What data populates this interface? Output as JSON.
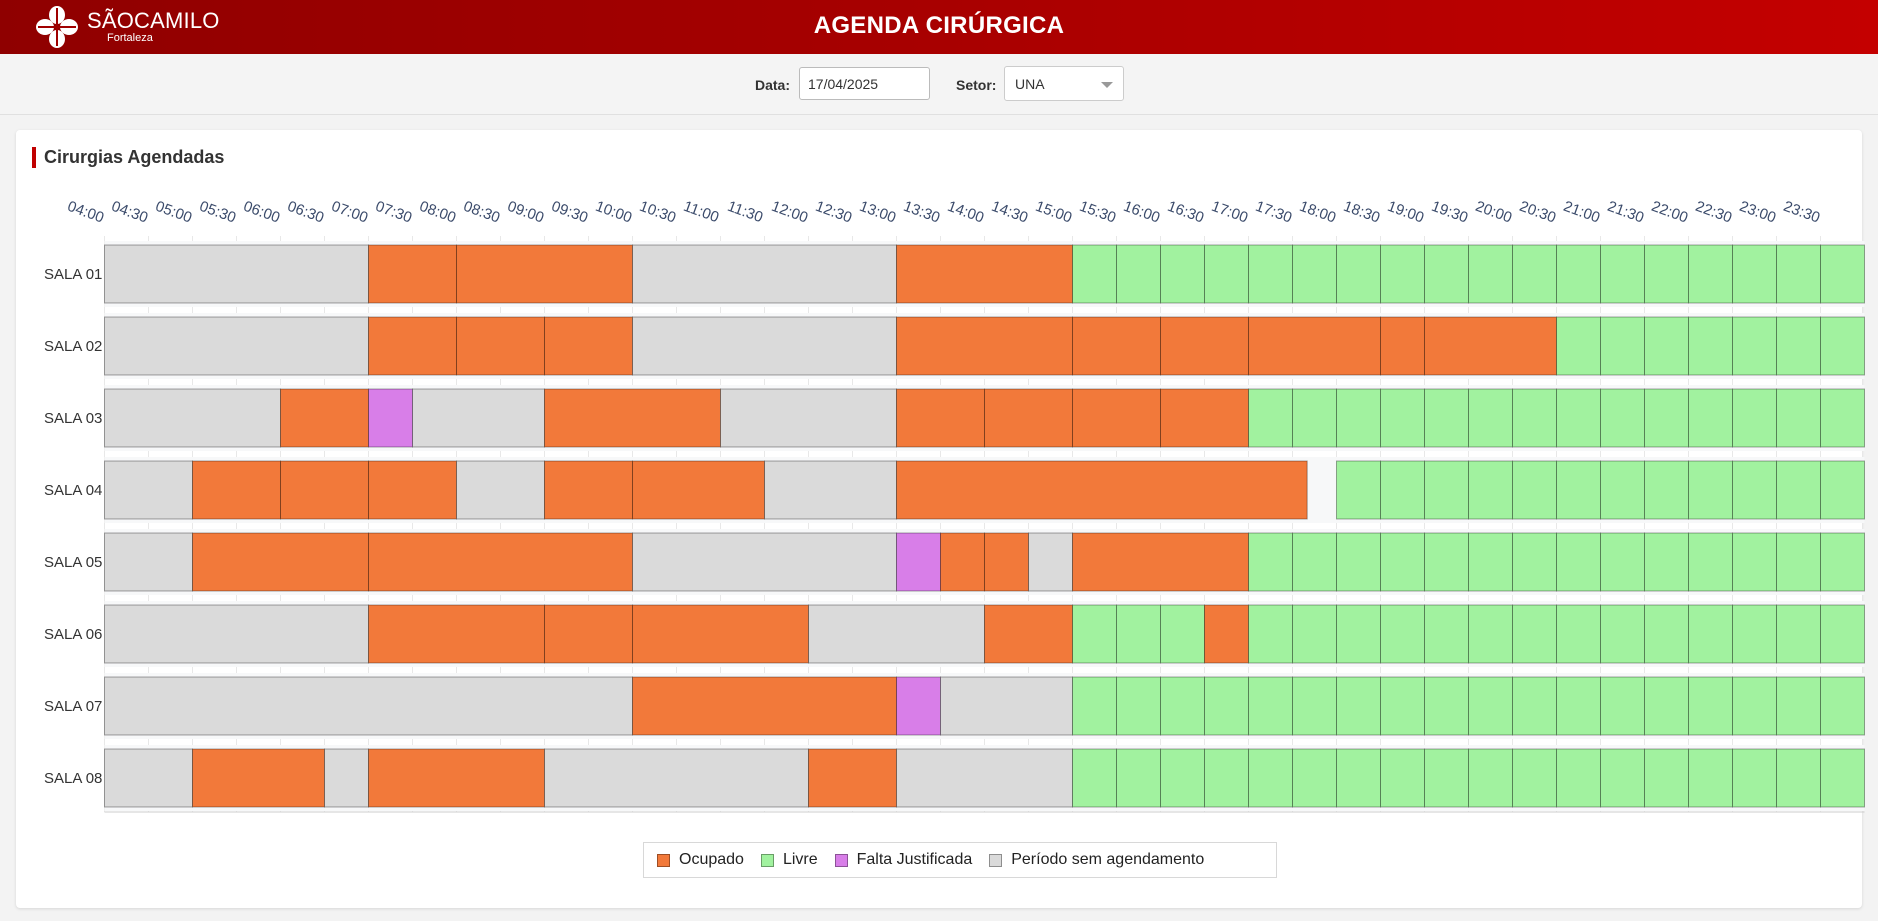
{
  "header": {
    "logo_brand": "SÃOCAMILO",
    "logo_sub": "Fortaleza",
    "title": "AGENDA CIRÚRGICA"
  },
  "filters": {
    "date_label": "Data:",
    "date_value": "17/04/2025",
    "sector_label": "Setor:",
    "sector_value": "UNA"
  },
  "card": {
    "title": "Cirurgias Agendadas"
  },
  "colors": {
    "ocupado": "#f2793a",
    "livre": "#a1f29f",
    "falta": "#d87ee8",
    "sem": "#dadada",
    "accent": "#c00000"
  },
  "legend": [
    {
      "key": "ocupado",
      "label": "Ocupado"
    },
    {
      "key": "livre",
      "label": "Livre"
    },
    {
      "key": "falta",
      "label": "Falta Justificada"
    },
    {
      "key": "sem",
      "label": "Período sem agendamento"
    }
  ],
  "chart_data": {
    "type": "gantt",
    "x_ticks": [
      "04:00",
      "04:30",
      "05:00",
      "05:30",
      "06:00",
      "06:30",
      "07:00",
      "07:30",
      "08:00",
      "08:30",
      "09:00",
      "09:30",
      "10:00",
      "10:30",
      "11:00",
      "11:30",
      "12:00",
      "12:30",
      "13:00",
      "13:30",
      "14:00",
      "14:30",
      "15:00",
      "15:30",
      "16:00",
      "16:30",
      "17:00",
      "17:30",
      "18:00",
      "18:30",
      "19:00",
      "19:30",
      "20:00",
      "20:30",
      "21:00",
      "21:30",
      "22:00",
      "22:30",
      "23:00",
      "23:30"
    ],
    "x_range": [
      "04:00",
      "23:30"
    ],
    "rooms": [
      {
        "name": "SALA 01",
        "blocks": [
          [
            "04:00",
            "07:00",
            "sem"
          ],
          [
            "07:00",
            "08:00",
            "ocupado"
          ],
          [
            "08:00",
            "10:00",
            "ocupado"
          ],
          [
            "10:00",
            "13:00",
            "sem"
          ],
          [
            "13:00",
            "15:00",
            "ocupado"
          ],
          [
            "15:00",
            "15:30",
            "livre"
          ],
          [
            "15:30",
            "16:00",
            "livre"
          ],
          [
            "16:00",
            "16:30",
            "livre"
          ],
          [
            "16:30",
            "17:00",
            "livre"
          ],
          [
            "17:00",
            "17:30",
            "livre"
          ],
          [
            "17:30",
            "18:00",
            "livre"
          ],
          [
            "18:00",
            "18:30",
            "livre"
          ],
          [
            "18:30",
            "19:00",
            "livre"
          ],
          [
            "19:00",
            "19:30",
            "livre"
          ],
          [
            "19:30",
            "20:00",
            "livre"
          ],
          [
            "20:00",
            "20:30",
            "livre"
          ],
          [
            "20:30",
            "21:00",
            "livre"
          ],
          [
            "21:00",
            "21:30",
            "livre"
          ],
          [
            "21:30",
            "22:00",
            "livre"
          ],
          [
            "22:00",
            "22:30",
            "livre"
          ],
          [
            "22:30",
            "23:00",
            "livre"
          ],
          [
            "23:00",
            "23:30",
            "livre"
          ],
          [
            "23:30",
            "24:00",
            "livre"
          ]
        ]
      },
      {
        "name": "SALA 02",
        "blocks": [
          [
            "04:00",
            "07:00",
            "sem"
          ],
          [
            "07:00",
            "08:00",
            "ocupado"
          ],
          [
            "08:00",
            "09:00",
            "ocupado"
          ],
          [
            "09:00",
            "10:00",
            "ocupado"
          ],
          [
            "10:00",
            "13:00",
            "sem"
          ],
          [
            "13:00",
            "15:00",
            "ocupado"
          ],
          [
            "15:00",
            "16:00",
            "ocupado"
          ],
          [
            "16:00",
            "17:00",
            "ocupado"
          ],
          [
            "17:00",
            "18:30",
            "ocupado"
          ],
          [
            "18:30",
            "19:00",
            "ocupado"
          ],
          [
            "19:00",
            "20:30",
            "ocupado"
          ],
          [
            "20:30",
            "21:00",
            "livre"
          ],
          [
            "21:00",
            "21:30",
            "livre"
          ],
          [
            "21:30",
            "22:00",
            "livre"
          ],
          [
            "22:00",
            "22:30",
            "livre"
          ],
          [
            "22:30",
            "23:00",
            "livre"
          ],
          [
            "23:00",
            "23:30",
            "livre"
          ],
          [
            "23:30",
            "24:00",
            "livre"
          ]
        ]
      },
      {
        "name": "SALA 03",
        "blocks": [
          [
            "04:00",
            "06:00",
            "sem"
          ],
          [
            "06:00",
            "07:00",
            "ocupado"
          ],
          [
            "07:00",
            "07:30",
            "falta"
          ],
          [
            "07:30",
            "09:00",
            "sem"
          ],
          [
            "09:00",
            "11:00",
            "ocupado"
          ],
          [
            "11:00",
            "13:00",
            "sem"
          ],
          [
            "13:00",
            "14:00",
            "ocupado"
          ],
          [
            "14:00",
            "15:00",
            "ocupado"
          ],
          [
            "15:00",
            "16:00",
            "ocupado"
          ],
          [
            "16:00",
            "17:00",
            "ocupado"
          ],
          [
            "17:00",
            "17:30",
            "livre"
          ],
          [
            "17:30",
            "18:00",
            "livre"
          ],
          [
            "18:00",
            "18:30",
            "livre"
          ],
          [
            "18:30",
            "19:00",
            "livre"
          ],
          [
            "19:00",
            "19:30",
            "livre"
          ],
          [
            "19:30",
            "20:00",
            "livre"
          ],
          [
            "20:00",
            "20:30",
            "livre"
          ],
          [
            "20:30",
            "21:00",
            "livre"
          ],
          [
            "21:00",
            "21:30",
            "livre"
          ],
          [
            "21:30",
            "22:00",
            "livre"
          ],
          [
            "22:00",
            "22:30",
            "livre"
          ],
          [
            "22:30",
            "23:00",
            "livre"
          ],
          [
            "23:00",
            "23:30",
            "livre"
          ],
          [
            "23:30",
            "24:00",
            "livre"
          ]
        ]
      },
      {
        "name": "SALA 04",
        "blocks": [
          [
            "04:00",
            "05:00",
            "sem"
          ],
          [
            "05:00",
            "06:00",
            "ocupado"
          ],
          [
            "06:00",
            "07:00",
            "ocupado"
          ],
          [
            "07:00",
            "08:00",
            "ocupado"
          ],
          [
            "08:00",
            "09:00",
            "sem"
          ],
          [
            "09:00",
            "10:00",
            "ocupado"
          ],
          [
            "10:00",
            "11:30",
            "ocupado"
          ],
          [
            "11:30",
            "13:00",
            "sem"
          ],
          [
            "13:00",
            "17:40",
            "ocupado"
          ],
          [
            "18:00",
            "18:30",
            "livre"
          ],
          [
            "18:30",
            "19:00",
            "livre"
          ],
          [
            "19:00",
            "19:30",
            "livre"
          ],
          [
            "19:30",
            "20:00",
            "livre"
          ],
          [
            "20:00",
            "20:30",
            "livre"
          ],
          [
            "20:30",
            "21:00",
            "livre"
          ],
          [
            "21:00",
            "21:30",
            "livre"
          ],
          [
            "21:30",
            "22:00",
            "livre"
          ],
          [
            "22:00",
            "22:30",
            "livre"
          ],
          [
            "22:30",
            "23:00",
            "livre"
          ],
          [
            "23:00",
            "23:30",
            "livre"
          ],
          [
            "23:30",
            "24:00",
            "livre"
          ]
        ]
      },
      {
        "name": "SALA 05",
        "blocks": [
          [
            "04:00",
            "05:00",
            "sem"
          ],
          [
            "05:00",
            "07:00",
            "ocupado"
          ],
          [
            "07:00",
            "10:00",
            "ocupado"
          ],
          [
            "10:00",
            "13:00",
            "sem"
          ],
          [
            "13:00",
            "13:30",
            "falta"
          ],
          [
            "13:30",
            "14:00",
            "ocupado"
          ],
          [
            "14:00",
            "14:30",
            "ocupado"
          ],
          [
            "14:30",
            "15:00",
            "sem"
          ],
          [
            "15:00",
            "17:00",
            "ocupado"
          ],
          [
            "17:00",
            "17:30",
            "livre"
          ],
          [
            "17:30",
            "18:00",
            "livre"
          ],
          [
            "18:00",
            "18:30",
            "livre"
          ],
          [
            "18:30",
            "19:00",
            "livre"
          ],
          [
            "19:00",
            "19:30",
            "livre"
          ],
          [
            "19:30",
            "20:00",
            "livre"
          ],
          [
            "20:00",
            "20:30",
            "livre"
          ],
          [
            "20:30",
            "21:00",
            "livre"
          ],
          [
            "21:00",
            "21:30",
            "livre"
          ],
          [
            "21:30",
            "22:00",
            "livre"
          ],
          [
            "22:00",
            "22:30",
            "livre"
          ],
          [
            "22:30",
            "23:00",
            "livre"
          ],
          [
            "23:00",
            "23:30",
            "livre"
          ],
          [
            "23:30",
            "24:00",
            "livre"
          ]
        ]
      },
      {
        "name": "SALA 06",
        "blocks": [
          [
            "04:00",
            "07:00",
            "sem"
          ],
          [
            "07:00",
            "09:00",
            "ocupado"
          ],
          [
            "09:00",
            "10:00",
            "ocupado"
          ],
          [
            "10:00",
            "12:00",
            "ocupado"
          ],
          [
            "12:00",
            "14:00",
            "sem"
          ],
          [
            "14:00",
            "15:00",
            "ocupado"
          ],
          [
            "15:00",
            "15:30",
            "livre"
          ],
          [
            "15:30",
            "16:00",
            "livre"
          ],
          [
            "16:00",
            "16:30",
            "livre"
          ],
          [
            "16:30",
            "17:00",
            "ocupado"
          ],
          [
            "17:00",
            "17:30",
            "livre"
          ],
          [
            "17:30",
            "18:00",
            "livre"
          ],
          [
            "18:00",
            "18:30",
            "livre"
          ],
          [
            "18:30",
            "19:00",
            "livre"
          ],
          [
            "19:00",
            "19:30",
            "livre"
          ],
          [
            "19:30",
            "20:00",
            "livre"
          ],
          [
            "20:00",
            "20:30",
            "livre"
          ],
          [
            "20:30",
            "21:00",
            "livre"
          ],
          [
            "21:00",
            "21:30",
            "livre"
          ],
          [
            "21:30",
            "22:00",
            "livre"
          ],
          [
            "22:00",
            "22:30",
            "livre"
          ],
          [
            "22:30",
            "23:00",
            "livre"
          ],
          [
            "23:00",
            "23:30",
            "livre"
          ],
          [
            "23:30",
            "24:00",
            "livre"
          ]
        ]
      },
      {
        "name": "SALA 07",
        "blocks": [
          [
            "04:00",
            "10:00",
            "sem"
          ],
          [
            "10:00",
            "13:00",
            "ocupado"
          ],
          [
            "13:00",
            "13:30",
            "falta"
          ],
          [
            "13:30",
            "15:00",
            "sem"
          ],
          [
            "15:00",
            "15:30",
            "livre"
          ],
          [
            "15:30",
            "16:00",
            "livre"
          ],
          [
            "16:00",
            "16:30",
            "livre"
          ],
          [
            "16:30",
            "17:00",
            "livre"
          ],
          [
            "17:00",
            "17:30",
            "livre"
          ],
          [
            "17:30",
            "18:00",
            "livre"
          ],
          [
            "18:00",
            "18:30",
            "livre"
          ],
          [
            "18:30",
            "19:00",
            "livre"
          ],
          [
            "19:00",
            "19:30",
            "livre"
          ],
          [
            "19:30",
            "20:00",
            "livre"
          ],
          [
            "20:00",
            "20:30",
            "livre"
          ],
          [
            "20:30",
            "21:00",
            "livre"
          ],
          [
            "21:00",
            "21:30",
            "livre"
          ],
          [
            "21:30",
            "22:00",
            "livre"
          ],
          [
            "22:00",
            "22:30",
            "livre"
          ],
          [
            "22:30",
            "23:00",
            "livre"
          ],
          [
            "23:00",
            "23:30",
            "livre"
          ],
          [
            "23:30",
            "24:00",
            "livre"
          ]
        ]
      },
      {
        "name": "SALA 08",
        "blocks": [
          [
            "04:00",
            "05:00",
            "sem"
          ],
          [
            "05:00",
            "06:30",
            "ocupado"
          ],
          [
            "06:30",
            "07:00",
            "sem"
          ],
          [
            "07:00",
            "09:00",
            "ocupado"
          ],
          [
            "09:00",
            "12:00",
            "sem"
          ],
          [
            "12:00",
            "13:00",
            "ocupado"
          ],
          [
            "13:00",
            "15:00",
            "sem"
          ],
          [
            "15:00",
            "15:30",
            "livre"
          ],
          [
            "15:30",
            "16:00",
            "livre"
          ],
          [
            "16:00",
            "16:30",
            "livre"
          ],
          [
            "16:30",
            "17:00",
            "livre"
          ],
          [
            "17:00",
            "17:30",
            "livre"
          ],
          [
            "17:30",
            "18:00",
            "livre"
          ],
          [
            "18:00",
            "18:30",
            "livre"
          ],
          [
            "18:30",
            "19:00",
            "livre"
          ],
          [
            "19:00",
            "19:30",
            "livre"
          ],
          [
            "19:30",
            "20:00",
            "livre"
          ],
          [
            "20:00",
            "20:30",
            "livre"
          ],
          [
            "20:30",
            "21:00",
            "livre"
          ],
          [
            "21:00",
            "21:30",
            "livre"
          ],
          [
            "21:30",
            "22:00",
            "livre"
          ],
          [
            "22:00",
            "22:30",
            "livre"
          ],
          [
            "22:30",
            "23:00",
            "livre"
          ],
          [
            "23:00",
            "23:30",
            "livre"
          ],
          [
            "23:30",
            "24:00",
            "livre"
          ]
        ]
      }
    ]
  }
}
